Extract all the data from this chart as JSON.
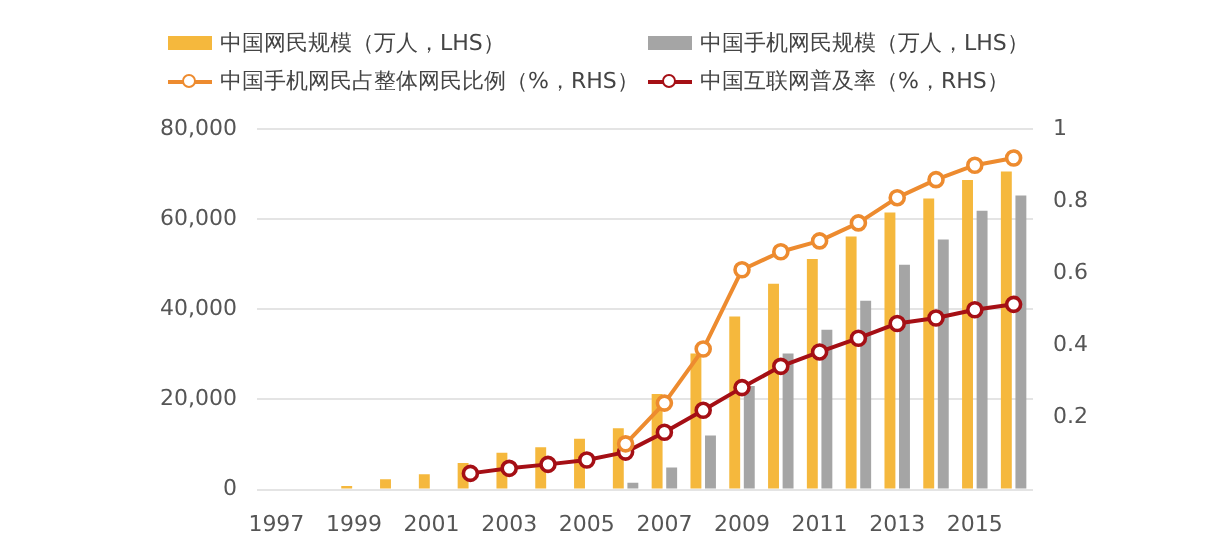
{
  "chart_data": {
    "type": "bar",
    "categories": [
      "1997",
      null,
      "1999",
      null,
      "2001",
      null,
      "2003",
      null,
      "2005",
      null,
      "2007",
      null,
      "2009",
      null,
      "2011",
      null,
      "2013",
      null,
      "2015",
      null
    ],
    "series": [
      {
        "name": "中国网民规模（万人，LHS）",
        "color": "#f5b83d",
        "values": [
          null,
          null,
          800,
          2300,
          3400,
          5900,
          8200,
          9400,
          11300,
          13600,
          21200,
          30200,
          38400,
          45700,
          51200,
          56200,
          61500,
          64600,
          68700,
          70600
        ]
      },
      {
        "name": "中国手机网民规模（万人，LHS）",
        "color": "#a5a5a5",
        "values": [
          null,
          null,
          null,
          null,
          null,
          null,
          null,
          null,
          null,
          1500,
          4900,
          12000,
          23000,
          30200,
          35500,
          41900,
          49900,
          55500,
          61900,
          65300
        ]
      },
      {
        "name": "中国手机网民占整体网民比例（%，RHS）",
        "type": "line",
        "axis": "y2",
        "color": "#ed8b2f",
        "values": [
          null,
          null,
          null,
          null,
          null,
          null,
          null,
          null,
          null,
          0.127,
          0.24,
          0.39,
          0.61,
          0.66,
          0.69,
          0.74,
          0.81,
          0.86,
          0.9,
          0.92
        ]
      },
      {
        "name": "中国互联网普及率（%，RHS）",
        "type": "line",
        "axis": "y2",
        "color": "#a50f15",
        "values": [
          null,
          null,
          null,
          null,
          null,
          0.045,
          0.059,
          0.07,
          0.082,
          0.104,
          0.159,
          0.22,
          0.283,
          0.342,
          0.382,
          0.42,
          0.461,
          0.476,
          0.499,
          0.514
        ]
      }
    ],
    "ylim": [
      0,
      80000
    ],
    "yticks": [
      {
        "value": 0,
        "label": "0"
      },
      {
        "value": 20000,
        "label": "20,000"
      },
      {
        "value": 40000,
        "label": "40,000"
      },
      {
        "value": 60000,
        "label": "60,000"
      },
      {
        "value": 80000,
        "label": "80,000"
      }
    ],
    "y2lim": [
      0,
      1
    ],
    "y2ticks": [
      0.2,
      0.4,
      0.6,
      0.8,
      1
    ],
    "grid": "y",
    "legend": "top",
    "marker": "circle",
    "line_style": "solid"
  }
}
